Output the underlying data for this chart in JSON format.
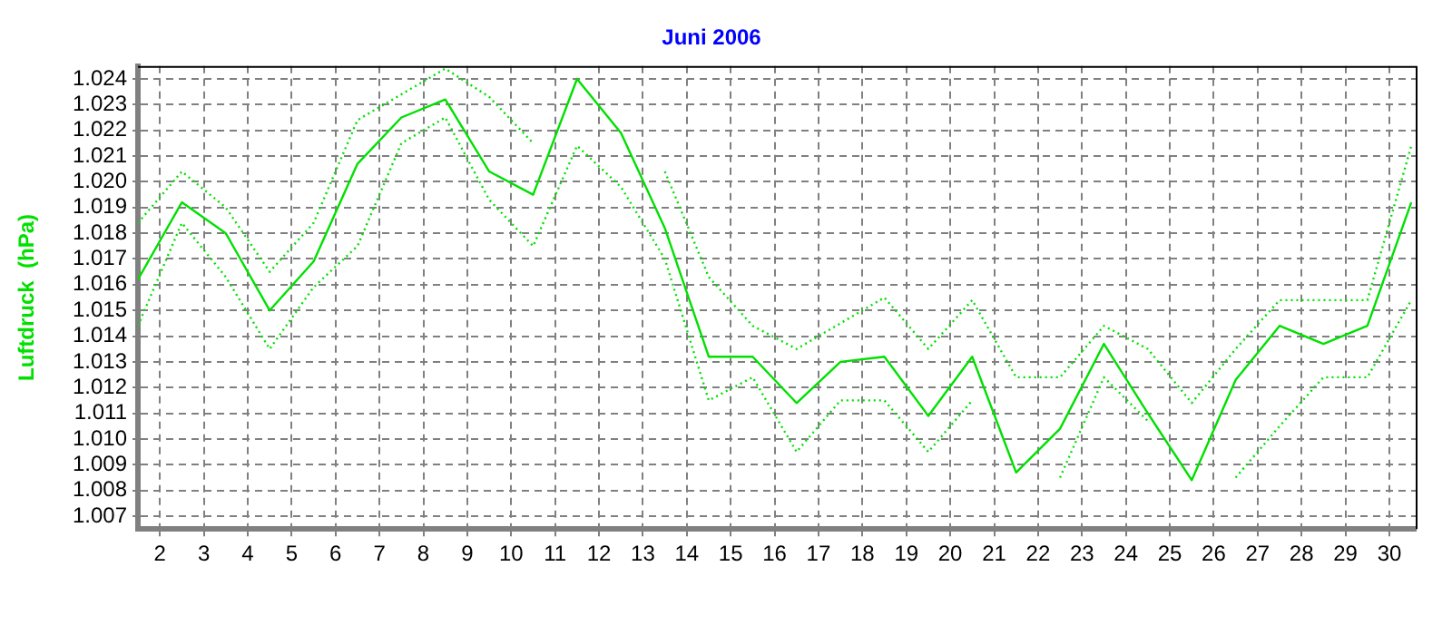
{
  "chart_data": {
    "type": "line",
    "title": "Juni 2006",
    "ylabel": "Luftdruck  (hPa)",
    "x": [
      1.5,
      2.5,
      3.5,
      4.5,
      5.5,
      6.5,
      7.5,
      8.5,
      9.5,
      10.5,
      11.5,
      12.5,
      13.5,
      14.5,
      15.5,
      16.5,
      17.5,
      18.5,
      19.5,
      20.5,
      21.5,
      22.5,
      23.5,
      24.5,
      25.5,
      26.5,
      27.5,
      28.5,
      29.5,
      30.5
    ],
    "series": [
      {
        "color": "#00e000",
        "line_style": "dotted",
        "values": [
          1.0184,
          1.0204,
          1.019,
          1.0165,
          1.0184,
          1.0224,
          1.0234,
          1.0244,
          1.0233,
          1.0215,
          null,
          null,
          1.0204,
          1.0163,
          1.0144,
          1.0135,
          1.0145,
          1.0155,
          1.0135,
          1.0154,
          1.0124,
          1.0124,
          1.0144,
          1.0135,
          1.0114,
          1.0135,
          1.0154,
          1.0154,
          1.0154,
          1.0214
        ]
      },
      {
        "color": "#00e000",
        "line_style": "solid",
        "values": [
          1.0162,
          1.0192,
          1.018,
          1.015,
          1.0169,
          1.0207,
          1.0225,
          1.0232,
          1.0204,
          1.0195,
          1.024,
          1.0219,
          1.0182,
          1.0132,
          1.0132,
          1.0114,
          1.013,
          1.0132,
          1.0109,
          1.0132,
          1.0087,
          1.0104,
          1.0137,
          1.011,
          1.0084,
          1.0123,
          1.0144,
          1.0137,
          1.0144,
          1.0192
        ]
      },
      {
        "color": "#00e000",
        "line_style": "dotted",
        "values": [
          1.0144,
          1.0184,
          1.0163,
          1.0135,
          1.0159,
          1.0175,
          1.0215,
          1.0225,
          1.0193,
          1.0175,
          1.0214,
          1.0198,
          1.017,
          1.0115,
          1.0124,
          1.0095,
          1.0115,
          1.0115,
          1.0095,
          1.0115,
          null,
          1.0085,
          1.0124,
          1.0107,
          null,
          1.0085,
          1.0105,
          1.0124,
          1.0124,
          1.0154
        ]
      }
    ],
    "xlim": [
      1.5,
      30.6
    ],
    "xticks": [
      2,
      3,
      4,
      5,
      6,
      7,
      8,
      9,
      10,
      11,
      12,
      13,
      14,
      15,
      16,
      17,
      18,
      19,
      20,
      21,
      22,
      23,
      24,
      25,
      26,
      27,
      28,
      29,
      30
    ],
    "ylim": [
      1.0065,
      1.0245
    ],
    "yticks": [
      1.007,
      1.008,
      1.009,
      {
        "value": 1.01,
        "label": "1.010"
      },
      1.011,
      1.012,
      1.013,
      1.014,
      1.015,
      1.016,
      1.017,
      1.018,
      1.019,
      {
        "value": 1.02,
        "label": "1.020"
      },
      1.021,
      1.022,
      1.023,
      1.024
    ],
    "grid": true,
    "legend": false,
    "marker": "none"
  }
}
